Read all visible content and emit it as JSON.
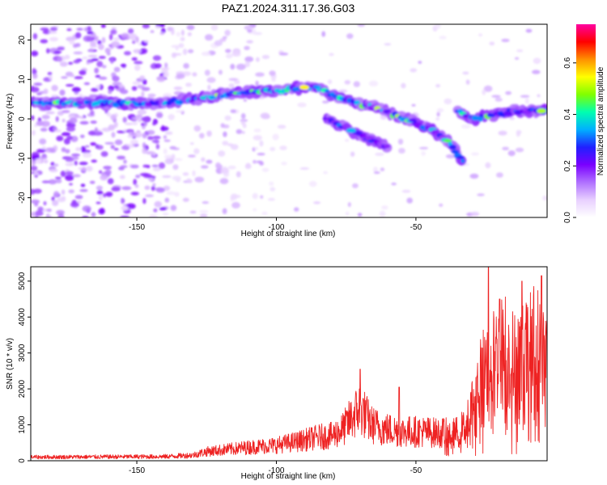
{
  "title": "PAZ1.2024.311.17.36.G03",
  "chart_data": [
    {
      "type": "heatmap",
      "title": "PAZ1.2024.311.17.36.G03",
      "xlabel": "Height of straight line (km)",
      "ylabel": "Frequency (Hz)",
      "xlim": [
        -188,
        -3
      ],
      "ylim": [
        -25,
        24
      ],
      "xticks": [
        -150,
        -100,
        -50
      ],
      "yticks": [
        20,
        10,
        0,
        -10,
        -20
      ],
      "colorbar": {
        "label": "Normalized spectral amplitude",
        "ticks": [
          0.0,
          0.2,
          0.4,
          0.6
        ],
        "range": [
          0,
          0.75
        ],
        "colors": [
          "#ffffff",
          "#e8d0ff",
          "#b070ff",
          "#7a00ff",
          "#2020ff",
          "#00b0ff",
          "#00ffb0",
          "#80ff00",
          "#ffff00",
          "#ff9000",
          "#ff0000",
          "#ff00a0"
        ]
      },
      "ridges": [
        {
          "name": "main",
          "points": [
            [
              -188,
              4
            ],
            [
              -160,
              4
            ],
            [
              -140,
              4
            ],
            [
              -130,
              5
            ],
            [
              -120,
              6
            ],
            [
              -110,
              7
            ],
            [
              -100,
              7
            ],
            [
              -90,
              8
            ],
            [
              -85,
              8
            ],
            [
              -80,
              6
            ],
            [
              -72,
              4
            ],
            [
              -65,
              3
            ],
            [
              -58,
              1
            ],
            [
              -50,
              -1
            ],
            [
              -44,
              -3
            ],
            [
              -38,
              -6
            ],
            [
              -33,
              -11
            ]
          ],
          "peak": 0.55
        },
        {
          "name": "lower branch",
          "points": [
            [
              -82,
              0
            ],
            [
              -76,
              -2
            ],
            [
              -70,
              -4
            ],
            [
              -64,
              -6
            ],
            [
              -60,
              -7
            ]
          ],
          "peak": 0.35
        },
        {
          "name": "right",
          "points": [
            [
              -35,
              2
            ],
            [
              -30,
              0
            ],
            [
              -22,
              1
            ],
            [
              -15,
              2
            ],
            [
              -8,
              2
            ],
            [
              -3,
              2
            ]
          ],
          "peak": 0.5
        }
      ]
    },
    {
      "type": "line",
      "xlabel": "Height of straight line (km)",
      "ylabel": "SNR (10 * v/v)",
      "xlim": [
        -188,
        -3
      ],
      "ylim": [
        0,
        5400
      ],
      "xticks": [
        -150,
        -100,
        -50
      ],
      "yticks": [
        0,
        1000,
        2000,
        3000,
        4000,
        5000
      ],
      "color": "#ee2222",
      "envelope": [
        [
          -188,
          130
        ],
        [
          -140,
          150
        ],
        [
          -130,
          200
        ],
        [
          -125,
          330
        ],
        [
          -115,
          430
        ],
        [
          -108,
          500
        ],
        [
          -100,
          560
        ],
        [
          -92,
          700
        ],
        [
          -85,
          850
        ],
        [
          -80,
          900
        ],
        [
          -76,
          1150
        ],
        [
          -70,
          1900
        ],
        [
          -66,
          1300
        ],
        [
          -62,
          1150
        ],
        [
          -55,
          1050
        ],
        [
          -48,
          1050
        ],
        [
          -42,
          1000
        ],
        [
          -36,
          1000
        ],
        [
          -32,
          1250
        ],
        [
          -28,
          2600
        ],
        [
          -25,
          3300
        ],
        [
          -22,
          3600
        ],
        [
          -18,
          4000
        ],
        [
          -15,
          3500
        ],
        [
          -10,
          3800
        ],
        [
          -7,
          4300
        ],
        [
          -4,
          3600
        ],
        [
          -3,
          3500
        ]
      ],
      "peaks": [
        [
          -70,
          2550
        ],
        [
          -56,
          2050
        ],
        [
          -24,
          5380
        ],
        [
          -20,
          4500
        ],
        [
          -12,
          5000
        ],
        [
          -5,
          5150
        ],
        [
          -3,
          3900
        ]
      ]
    }
  ]
}
